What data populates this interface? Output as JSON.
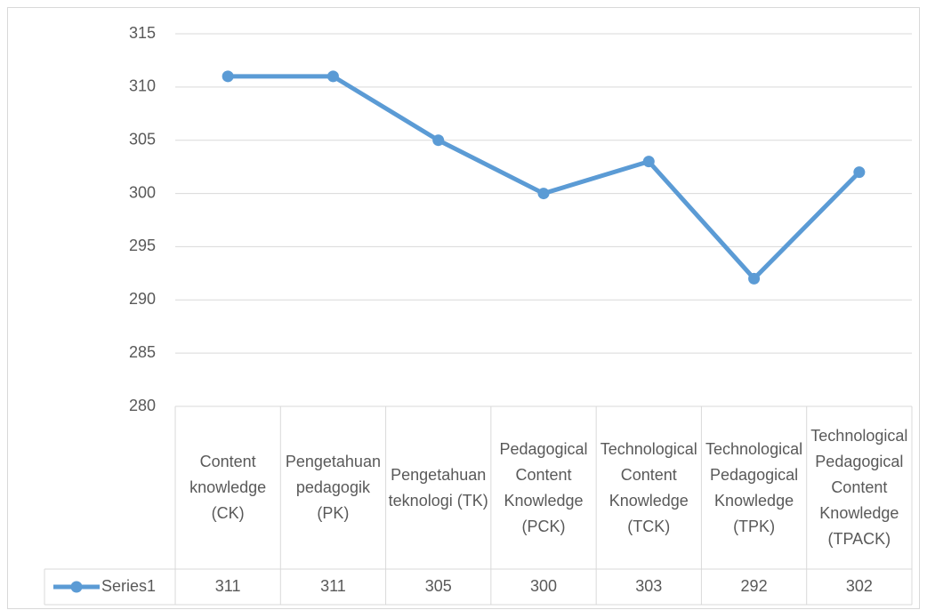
{
  "chart_data": {
    "type": "line",
    "categories": [
      "Content knowledge (CK)",
      "Pengetahuan pedagogik (PK)",
      "Pengetahuan teknologi (TK)",
      "Pedagogical Content Knowledge (PCK)",
      "Technological Content Knowledge (TCK)",
      "Technological Pedagogical Knowledge (TPK)",
      "Technological Pedagogical Content Knowledge (TPACK)"
    ],
    "series": [
      {
        "name": "Series1",
        "color": "#5b9bd5",
        "values": [
          311,
          311,
          305,
          300,
          303,
          292,
          302
        ]
      }
    ],
    "ylim": [
      280,
      315
    ],
    "yticks": [
      280,
      285,
      290,
      295,
      300,
      305,
      310,
      315
    ],
    "grid": true,
    "data_table": true
  }
}
